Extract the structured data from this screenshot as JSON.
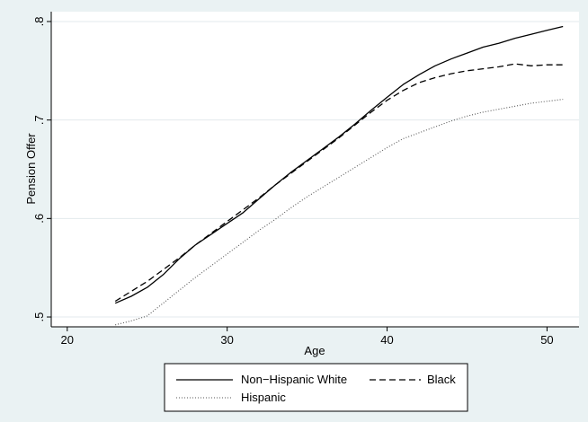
{
  "chart_data": {
    "type": "line",
    "xlabel": "Age",
    "ylabel": "Pension Offer",
    "xlim": [
      19,
      52
    ],
    "ylim": [
      0.49,
      0.81
    ],
    "xticks": [
      20,
      30,
      40,
      50
    ],
    "xtick_labels": [
      "20",
      "30",
      "40",
      "50"
    ],
    "yticks": [
      0.5,
      0.6,
      0.7,
      0.8
    ],
    "ytick_labels": [
      ".5",
      ".6",
      ".7",
      ".8"
    ],
    "grid": true,
    "legend_position": "bottom",
    "series": [
      {
        "name": "Non−Hispanic White",
        "style": "solid",
        "color": "#000000",
        "x": [
          23,
          24,
          25,
          26,
          27,
          28,
          29,
          30,
          31,
          32,
          33,
          34,
          35,
          36,
          37,
          38,
          39,
          40,
          41,
          42,
          43,
          44,
          45,
          46,
          47,
          48,
          49,
          50,
          51
        ],
        "y": [
          0.514,
          0.521,
          0.53,
          0.543,
          0.559,
          0.573,
          0.584,
          0.595,
          0.606,
          0.62,
          0.634,
          0.647,
          0.659,
          0.671,
          0.683,
          0.696,
          0.71,
          0.723,
          0.736,
          0.746,
          0.755,
          0.762,
          0.768,
          0.774,
          0.778,
          0.783,
          0.787,
          0.791,
          0.795
        ]
      },
      {
        "name": "Black",
        "style": "dashed",
        "color": "#000000",
        "x": [
          23,
          24,
          25,
          26,
          27,
          28,
          29,
          30,
          31,
          32,
          33,
          34,
          35,
          36,
          37,
          38,
          39,
          40,
          41,
          42,
          43,
          44,
          45,
          46,
          47,
          48,
          49,
          50,
          51
        ],
        "y": [
          0.516,
          0.526,
          0.536,
          0.548,
          0.56,
          0.573,
          0.585,
          0.597,
          0.609,
          0.621,
          0.634,
          0.646,
          0.658,
          0.67,
          0.682,
          0.695,
          0.708,
          0.72,
          0.73,
          0.738,
          0.743,
          0.747,
          0.75,
          0.752,
          0.754,
          0.757,
          0.755,
          0.756,
          0.756
        ]
      },
      {
        "name": "Hispanic",
        "style": "dotted",
        "color": "#000000",
        "x": [
          23,
          24,
          25,
          26,
          27,
          28,
          29,
          30,
          31,
          32,
          33,
          34,
          35,
          36,
          37,
          38,
          39,
          40,
          41,
          42,
          43,
          44,
          45,
          46,
          47,
          48,
          49,
          50,
          51
        ],
        "y": [
          0.492,
          0.496,
          0.501,
          0.514,
          0.527,
          0.54,
          0.552,
          0.564,
          0.576,
          0.588,
          0.599,
          0.611,
          0.622,
          0.632,
          0.642,
          0.652,
          0.662,
          0.672,
          0.681,
          0.687,
          0.693,
          0.699,
          0.704,
          0.708,
          0.711,
          0.714,
          0.717,
          0.719,
          0.721
        ]
      }
    ]
  }
}
